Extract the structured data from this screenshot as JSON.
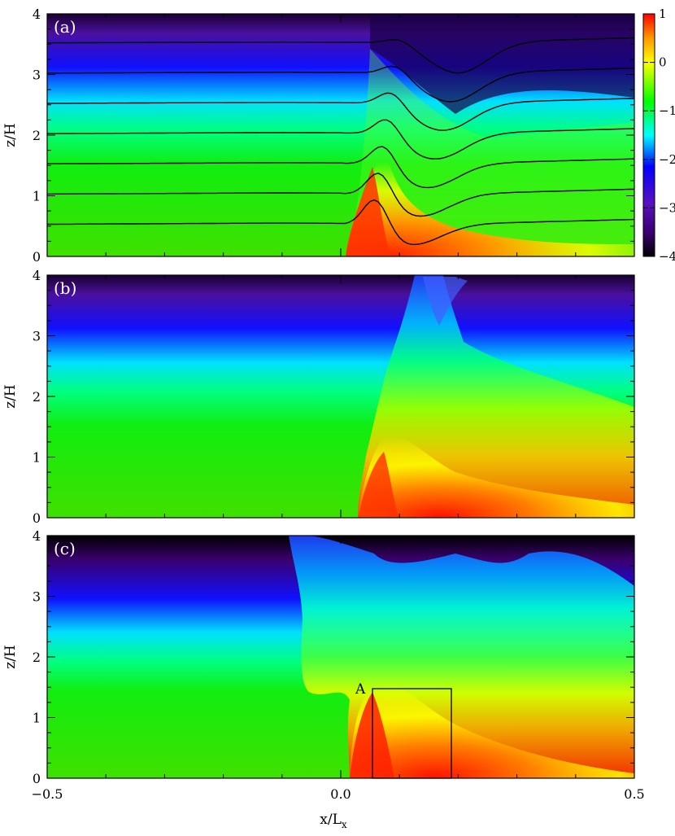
{
  "chart_data": [
    {
      "type": "heatmap",
      "panel_label": "(a)",
      "xlim": [
        -0.5,
        0.5
      ],
      "ylim": [
        0,
        4
      ],
      "ylabel": "z/H",
      "yticks": [
        0,
        1,
        2,
        3,
        4
      ],
      "xticks_labeled": false,
      "colorbar": {
        "range": [
          -4,
          1
        ],
        "ticks": [
          1,
          0,
          -1,
          -2,
          -3,
          -4
        ],
        "colormap": [
          "#000000",
          "#3a0070",
          "#5a10c0",
          "#0000ff",
          "#00ffff",
          "#00ff00",
          "#ffff00",
          "#ff9900",
          "#ff0000"
        ]
      },
      "field_lines": {
        "z_levels": [
          0.5,
          1.0,
          1.5,
          2.0,
          2.5,
          3.0,
          3.5
        ]
      }
    },
    {
      "type": "heatmap",
      "panel_label": "(b)",
      "xlim": [
        -0.5,
        0.5
      ],
      "ylim": [
        0,
        4
      ],
      "ylabel": "z/H",
      "yticks": [
        0,
        1,
        2,
        3,
        4
      ],
      "xticks_labeled": false
    },
    {
      "type": "heatmap",
      "panel_label": "(c)",
      "xlim": [
        -0.5,
        0.5
      ],
      "ylim": [
        0,
        4
      ],
      "ylabel": "z/H",
      "yticks": [
        0,
        1,
        2,
        3,
        4
      ],
      "xlabel": "x/L",
      "xlabel_subscript": "x",
      "xticks": [
        -0.5,
        0.0,
        0.5
      ],
      "xtick_labels": [
        "−0.5",
        "0.0",
        "0.5"
      ],
      "annotation": {
        "text": "A",
        "box_x": [
          0.06,
          0.19
        ],
        "box_z": [
          0,
          1.48
        ]
      }
    }
  ],
  "colors": {
    "frame": "#000000",
    "contour": "#000000"
  }
}
